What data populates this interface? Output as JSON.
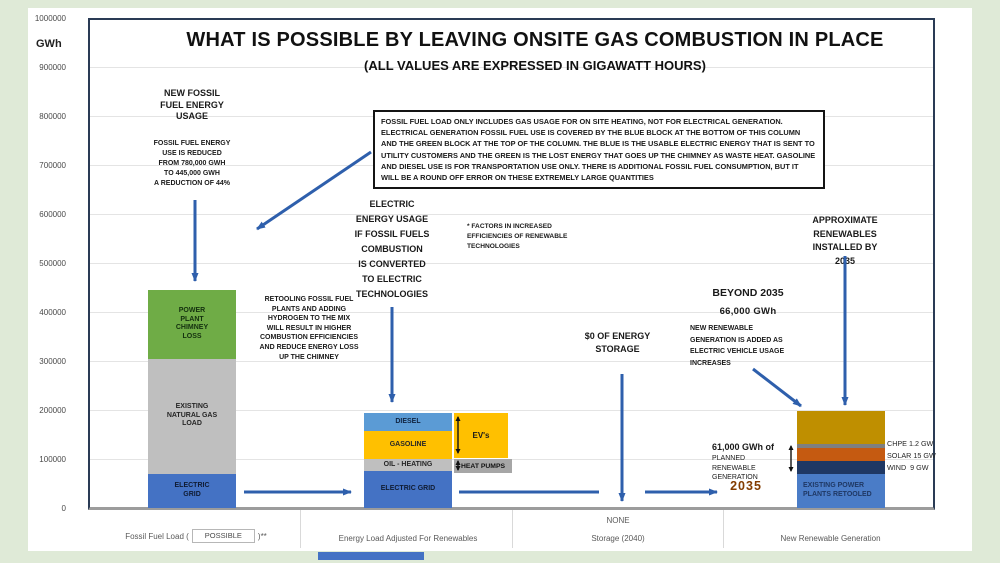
{
  "colors": {
    "bg_green": "#dfead7",
    "panel_white": "#ffffff",
    "arrow_blue": "#2E5FAC",
    "plot_border": "#2a3b55",
    "axis_gray": "#9c9c9c",
    "gridline": "#e4e4e4",
    "tick_ink": "#4a4a4a",
    "xlabel_ink": "#595959",
    "year_brown": "#833C00",
    "ev_yellow": "#FFC000",
    "heat_pump_gray": "#A6A6A6",
    "scrollbar_blue": "#4472C4"
  },
  "y_axis": {
    "unit": "GWh",
    "ticks": [
      {
        "value": 0,
        "label": "0"
      },
      {
        "value": 100000,
        "label": "100000"
      },
      {
        "value": 200000,
        "label": "200000"
      },
      {
        "value": 300000,
        "label": "300000"
      },
      {
        "value": 400000,
        "label": "400000"
      },
      {
        "value": 500000,
        "label": "500000"
      },
      {
        "value": 600000,
        "label": "600000"
      },
      {
        "value": 700000,
        "label": "700000"
      },
      {
        "value": 800000,
        "label": "800000"
      },
      {
        "value": 900000,
        "label": "900000"
      },
      {
        "value": 1000000,
        "label": "1000000"
      }
    ]
  },
  "x_axis": {
    "cat1_prefix": "Fossil Fuel Load (",
    "cat1_dropdown": "POSSIBLE",
    "cat1_suffix": ")**",
    "cat2": "Energy Load Adjusted For Renewables",
    "cat3_top": "NONE",
    "cat3": "Storage (2040)",
    "cat4": "New Renewable Generation"
  },
  "annotations": {
    "new_fossil_header": "NEW FOSSIL\nFUEL ENERGY\nUSAGE",
    "new_fossil_body": "FOSSIL FUEL ENERGY\nUSE IS REDUCED\nFROM 780,000  GWH\nTO  445,000 GWH\nA REDUCTION OF 44%",
    "info_box": "FOSSIL FUEL LOAD ONLY INCLUDES GAS USAGE FOR ON SITE HEATING, NOT FOR ELECTRICAL GENERATION. ELECTRICAL GENERATION FOSSIL FUEL USE IS COVERED BY THE BLUE BLOCK AT THE BOTTOM OF THIS COLUMN AND THE GREEN BLOCK AT THE TOP OF THE COLUMN.  THE BLUE IS THE USABLE ELECTRIC ENERGY THAT IS SENT TO UTILITY CUSTOMERS  AND THE GREEN IS THE LOST ENERGY THAT GOES UP THE CHIMNEY AS WASTE HEAT.  GASOLINE AND DIESEL USE IS FOR TRANSPORTATION USE ONLY.  THERE IS ADDITIONAL FOSSIL FUEL CONSUMPTION, BUT IT WILL BE A ROUND OFF ERROR ON THESE EXTREMELY LARGE QUANTITIES",
    "electric_usage": "ELECTRIC\nENERGY USAGE\nIF FOSSIL FUELS\nCOMBUSTION\nIS CONVERTED\nTO ELECTRIC\nTECHNOLOGIES",
    "factors_note": "* FACTORS IN INCREASED\nEFFICIENCIES OF RENEWABLE\nTECHNOLOGIES",
    "retooling_note": "RETOOLING FOSSIL FUEL\nPLANTS AND ADDING\nHYDROGEN TO  THE  MIX\nWILL RESULT IN HIGHER\nCOMBUSTION EFFICIENCIES\nAND REDUCE ENERGY LOSS\nUP THE CHIMNEY",
    "storage_note": "$0 OF ENERGY\nSTORAGE",
    "beyond_header": "BEYOND 2035",
    "beyond_value": "66,000 GWh",
    "beyond_body": "NEW RENEWABLE\nGENERATION IS ADDED AS\nELECTRIC VEHICLE USAGE\nINCREASES",
    "approx_note": "APPROXIMATE\nRENEWABLES\nINSTALLED BY\n2035",
    "planned_value": "61,000 GWh of",
    "planned_body": "PLANNED\nRENEWABLE\nGENERATION",
    "planned_year": "2035"
  },
  "chart_data": {
    "type": "bar",
    "stacked": true,
    "title": "WHAT IS POSSIBLE BY LEAVING ONSITE GAS COMBUSTION IN PLACE",
    "subtitle": "(ALL VALUES ARE EXPRESSED IN GIGAWATT HOURS)",
    "ylabel": "GWh",
    "ylim": [
      0,
      1000000
    ],
    "ytick_step": 100000,
    "grid": true,
    "legend": "none",
    "categories": [
      "Fossil Fuel Load ( POSSIBLE )**",
      "Energy Load Adjusted For Renewables",
      "Storage (2040) - NONE",
      "New Renewable Generation"
    ],
    "bars": [
      {
        "category": "Fossil Fuel Load ( POSSIBLE )**",
        "total_gwh": 445000,
        "segments": [
          {
            "label": "ELECTRIC\nGRID",
            "value_gwh": 70000,
            "color": "#4472C4",
            "text_color": "#101c33"
          },
          {
            "label": "EXISTING\nNATURAL GAS\nLOAD",
            "value_gwh": 235000,
            "color": "#BFBFBF",
            "text_color": "#262626"
          },
          {
            "label": "POWER\nPLANT\nCHIMNEY\nLOSS",
            "value_gwh": 140000,
            "color": "#6FAC46",
            "text_color": "#14310f"
          }
        ]
      },
      {
        "category": "Energy Load Adjusted For Renewables",
        "total_gwh": 194000,
        "segments": [
          {
            "label": "ELECTRIC GRID",
            "value_gwh": 75000,
            "color": "#4472C4",
            "text_color": "#101c33"
          },
          {
            "label": "OIL - HEATING",
            "value_gwh": 25000,
            "color": "#BFBFBF",
            "text_color": "#262626"
          },
          {
            "label": "GASOLINE",
            "value_gwh": 57000,
            "color": "#FFC000",
            "text_color": "#262626"
          },
          {
            "label": "DIESEL",
            "value_gwh": 37000,
            "color": "#5B9BD5",
            "text_color": "#102440"
          }
        ]
      },
      {
        "category": "Storage (2040) - NONE",
        "total_gwh": 0,
        "segments": []
      },
      {
        "category": "New Renewable Generation",
        "total_gwh": 197000,
        "segments": [
          {
            "label": "EXISTING POWER\nPLANTS RETOOLED",
            "value_gwh": 70000,
            "color": "#4A7CC7",
            "text_color": "#1F3864",
            "align": "left"
          },
          {
            "label": "",
            "value_gwh": 26000,
            "color": "#1F3864",
            "side_label": "WIND  9 GW"
          },
          {
            "label": "",
            "value_gwh": 27000,
            "color": "#C55A11",
            "side_label": "SOLAR 15 GW"
          },
          {
            "label": "",
            "value_gwh": 8000,
            "color": "#7F7F7F",
            "side_label": "CHPE 1.2 GW"
          },
          {
            "label": "",
            "value_gwh": 66000,
            "color": "#BF8F00",
            "note": "BEYOND 2035 - 66,000 GWh"
          }
        ]
      }
    ],
    "callout_boxes": [
      {
        "label": "EV's",
        "color": "#FFC000"
      },
      {
        "label": "HEAT PUMPS",
        "color": "#A6A6A6"
      }
    ],
    "gw_labels": [
      "CHPE 1.2 GW",
      "SOLAR 15 GW",
      "WIND  9 GW"
    ]
  }
}
